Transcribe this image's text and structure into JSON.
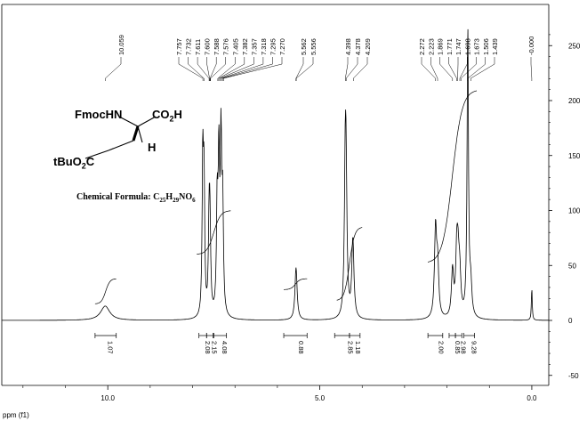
{
  "chart_data": {
    "type": "line",
    "xlabel": "ppm (f1)",
    "xlim": [
      12.5,
      -0.4
    ],
    "ylim": [
      -55,
      262
    ],
    "x_ticks": [
      10.0,
      5.0,
      0.0
    ],
    "x_tick_labels": [
      "10.0",
      "5.0",
      "0.0"
    ],
    "y_ticks": [
      -50,
      0,
      50,
      100,
      150,
      200,
      250
    ],
    "y_tick_labels": [
      "-50",
      "0",
      "50",
      "100",
      "150",
      "200",
      "250"
    ],
    "peak_labels": [
      "10.059",
      "7.757",
      "7.732",
      "7.611",
      "7.600",
      "7.588",
      "7.576",
      "7.405",
      "7.382",
      "7.357",
      "7.318",
      "7.295",
      "7.270",
      "5.562",
      "5.556",
      "4.398",
      "4.378",
      "4.209",
      "2.272",
      "2.223",
      "1.869",
      "1.771",
      "1.747",
      "1.698",
      "1.673",
      "1.506",
      "1.439",
      "-0.000"
    ],
    "peak_label_x": [
      10.059,
      7.757,
      7.732,
      7.611,
      7.6,
      7.588,
      7.576,
      7.405,
      7.382,
      7.357,
      7.318,
      7.295,
      7.27,
      5.562,
      5.556,
      4.398,
      4.378,
      4.209,
      2.272,
      2.223,
      1.869,
      1.771,
      1.747,
      1.698,
      1.673,
      1.506,
      1.439,
      0.0
    ],
    "peak_groups": [
      {
        "label_range": [
          0,
          0
        ],
        "center": 10.059
      },
      {
        "label_range": [
          1,
          12
        ],
        "center": 7.51
      },
      {
        "label_range": [
          13,
          14
        ],
        "center": 5.56
      },
      {
        "label_range": [
          15,
          17
        ],
        "center": 4.33
      },
      {
        "label_range": [
          18,
          26
        ],
        "center": 1.85
      },
      {
        "label_range": [
          27,
          27
        ],
        "center": 0.0
      }
    ],
    "peaks": [
      {
        "x": 10.06,
        "y": 13,
        "w": 0.13
      },
      {
        "x": 7.76,
        "y": 140,
        "w": 0.018
      },
      {
        "x": 7.73,
        "y": 120,
        "w": 0.018
      },
      {
        "x": 7.61,
        "y": 78,
        "w": 0.02
      },
      {
        "x": 7.59,
        "y": 70,
        "w": 0.02
      },
      {
        "x": 7.42,
        "y": 95,
        "w": 0.02
      },
      {
        "x": 7.38,
        "y": 135,
        "w": 0.02
      },
      {
        "x": 7.33,
        "y": 150,
        "w": 0.02
      },
      {
        "x": 7.29,
        "y": 95,
        "w": 0.02
      },
      {
        "x": 5.56,
        "y": 48,
        "w": 0.03
      },
      {
        "x": 4.4,
        "y": 112,
        "w": 0.025
      },
      {
        "x": 4.38,
        "y": 108,
        "w": 0.025
      },
      {
        "x": 4.22,
        "y": 72,
        "w": 0.03
      },
      {
        "x": 2.27,
        "y": 80,
        "w": 0.03
      },
      {
        "x": 2.22,
        "y": 45,
        "w": 0.03
      },
      {
        "x": 1.87,
        "y": 42,
        "w": 0.03
      },
      {
        "x": 1.77,
        "y": 52,
        "w": 0.03
      },
      {
        "x": 1.74,
        "y": 42,
        "w": 0.03
      },
      {
        "x": 1.7,
        "y": 35,
        "w": 0.03
      },
      {
        "x": 1.51,
        "y": 262,
        "w": 0.02
      },
      {
        "x": 1.44,
        "y": 28,
        "w": 0.03
      },
      {
        "x": 0.0,
        "y": 30,
        "w": 0.012
      }
    ],
    "integrals": [
      {
        "x": 10.06,
        "value": "1.07",
        "from": 10.3,
        "to": 9.8
      },
      {
        "x": 7.76,
        "value": "2.08",
        "from": 7.85,
        "to": 7.67
      },
      {
        "x": 7.6,
        "value": "2.15",
        "from": 7.67,
        "to": 7.52
      },
      {
        "x": 7.36,
        "value": "4.08",
        "from": 7.5,
        "to": 7.2
      },
      {
        "x": 5.56,
        "value": "0.88",
        "from": 5.85,
        "to": 5.3
      },
      {
        "x": 4.39,
        "value": "2.85",
        "from": 4.65,
        "to": 4.3
      },
      {
        "x": 4.21,
        "value": "1.18",
        "from": 4.3,
        "to": 4.05
      },
      {
        "x": 2.25,
        "value": "2.00",
        "from": 2.45,
        "to": 2.1
      },
      {
        "x": 1.87,
        "value": "0.85",
        "from": 1.95,
        "to": 1.8
      },
      {
        "x": 1.73,
        "value": "2.98",
        "from": 1.8,
        "to": 1.65
      },
      {
        "x": 1.48,
        "value": "9.28",
        "from": 1.6,
        "to": 1.35
      }
    ],
    "integral_curves": [
      {
        "from": 10.3,
        "to": 9.8,
        "y0": 15,
        "y1": 38
      },
      {
        "from": 7.9,
        "to": 7.1,
        "y0": 60,
        "y1": 100
      },
      {
        "from": 5.85,
        "to": 5.3,
        "y0": 28,
        "y1": 38
      },
      {
        "from": 4.6,
        "to": 4.0,
        "y0": 18,
        "y1": 85
      },
      {
        "from": 2.45,
        "to": 1.3,
        "y0": 52,
        "y1": 210
      }
    ]
  },
  "structure": {
    "line1_left": "FmocHN",
    "line1_right": "CO",
    "line1_right_sub": "2",
    "line1_right_tail": "H",
    "h_label": "H",
    "tbu_prefix": "tBuO",
    "tbu_sub": "2",
    "tbu_suffix": "C"
  },
  "formula": {
    "prefix": "Chemical Formula: C",
    "c_count": "25",
    "h_atom": "H",
    "h_count": "29",
    "no_atoms": "NO",
    "o_count": "6"
  }
}
